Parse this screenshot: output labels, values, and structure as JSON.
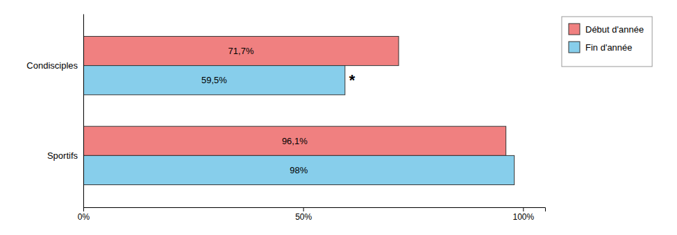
{
  "chart_data": {
    "type": "bar",
    "orientation": "horizontal",
    "categories": [
      "Condisciples",
      "Sportifs"
    ],
    "series": [
      {
        "name": "Début d'année",
        "color": "#F08080",
        "values": [
          71.7,
          96.1
        ],
        "value_labels": [
          "71,7%",
          "96,1%"
        ]
      },
      {
        "name": "Fin d'année",
        "color": "#87CEEB",
        "values": [
          59.5,
          98.0
        ],
        "value_labels": [
          "59,5%",
          "98%"
        ]
      }
    ],
    "xlim": [
      0,
      105
    ],
    "xticks": [
      {
        "value": 0,
        "label": "0%"
      },
      {
        "value": 50,
        "label": "50%"
      },
      {
        "value": 100,
        "label": "100%"
      }
    ],
    "grid": false,
    "legend": "right",
    "annotations": [
      {
        "text": "*",
        "category": "Condisciples",
        "series": "Fin d'année"
      }
    ]
  }
}
